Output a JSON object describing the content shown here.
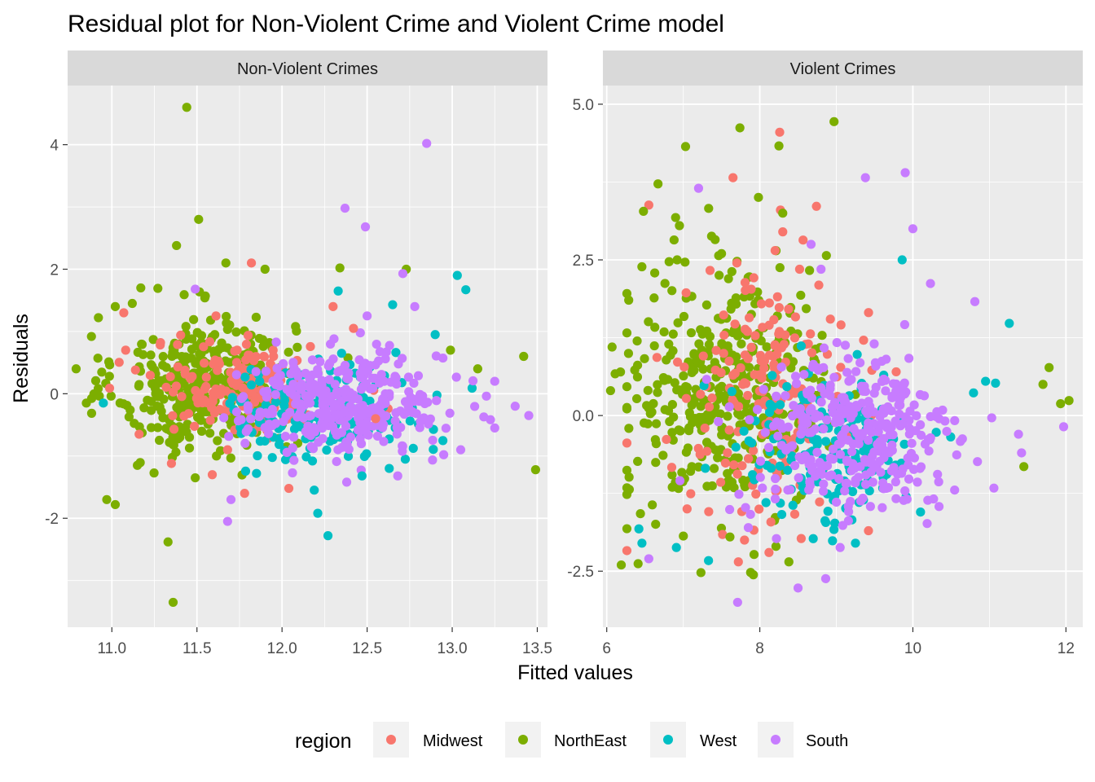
{
  "chart_data": {
    "type": "scatter",
    "title": "Residual plot for Non-Violent Crime and Violent Crime model",
    "xlabel": "Fitted values",
    "ylabel": "Residuals",
    "legend": {
      "title": "region",
      "position": "bottom",
      "entries": [
        {
          "name": "Midwest",
          "color": "#F8766D"
        },
        {
          "name": "NorthEast",
          "color": "#7CAE00"
        },
        {
          "name": "West",
          "color": "#00BFC4"
        },
        {
          "name": "South",
          "color": "#C77CFF"
        }
      ]
    },
    "grid": true,
    "y_scale": "free",
    "panels": [
      {
        "name": "Non-Violent Crimes",
        "xlim": [
          10.74,
          13.56
        ],
        "ylim": [
          -3.75,
          4.95
        ],
        "x_ticks": [
          11.0,
          11.5,
          12.0,
          12.5,
          13.0,
          13.5
        ],
        "x_tick_labels": [
          "11.0",
          "11.5",
          "12.0",
          "12.5",
          "13.0",
          "13.5"
        ],
        "y_ticks": [
          -2,
          0,
          2,
          4
        ],
        "y_tick_labels": [
          "-2",
          "0",
          "2",
          "4"
        ],
        "outliers": {
          "Midwest": [
            [
              11.82,
              2.1
            ],
            [
              11.07,
              1.3
            ],
            [
              11.78,
              -1.6
            ],
            [
              11.95,
              0.6
            ],
            [
              12.04,
              -1.52
            ],
            [
              11.59,
              -1.3
            ],
            [
              11.35,
              -1.12
            ],
            [
              11.68,
              -0.9
            ],
            [
              12.42,
              1.05
            ],
            [
              12.3,
              1.4
            ],
            [
              11.16,
              -0.65
            ],
            [
              12.55,
              -0.4
            ]
          ],
          "NorthEast": [
            [
              11.44,
              4.6
            ],
            [
              11.36,
              -3.35
            ],
            [
              11.51,
              2.8
            ],
            [
              11.33,
              -2.38
            ],
            [
              11.38,
              2.38
            ],
            [
              11.67,
              2.1
            ],
            [
              12.73,
              2.0
            ],
            [
              11.9,
              2.0
            ],
            [
              10.79,
              0.4
            ],
            [
              10.97,
              -1.7
            ],
            [
              11.02,
              -1.78
            ],
            [
              13.49,
              -1.22
            ],
            [
              13.42,
              0.6
            ],
            [
              10.85,
              -0.15
            ],
            [
              11.02,
              1.4
            ],
            [
              11.17,
              1.7
            ],
            [
              11.15,
              -1.15
            ],
            [
              11.49,
              -1.35
            ],
            [
              12.34,
              2.02
            ],
            [
              12.99,
              0.7
            ],
            [
              13.15,
              0.4
            ],
            [
              11.12,
              1.45
            ],
            [
              10.88,
              0.92
            ]
          ],
          "West": [
            [
              13.03,
              1.9
            ],
            [
              13.08,
              1.67
            ],
            [
              12.21,
              -1.92
            ],
            [
              12.27,
              -2.28
            ],
            [
              12.33,
              1.65
            ],
            [
              12.65,
              1.43
            ],
            [
              10.95,
              -0.15
            ],
            [
              12.63,
              -1.2
            ],
            [
              11.85,
              -1.28
            ],
            [
              12.47,
              -1.32
            ],
            [
              12.35,
              0.65
            ],
            [
              12.9,
              0.95
            ]
          ],
          "South": [
            [
              12.85,
              4.02
            ],
            [
              12.37,
              2.98
            ],
            [
              12.49,
              2.68
            ],
            [
              11.7,
              -1.7
            ],
            [
              11.68,
              -2.05
            ],
            [
              13.45,
              -0.35
            ],
            [
              13.37,
              -0.2
            ],
            [
              13.25,
              -0.55
            ],
            [
              12.71,
              1.93
            ],
            [
              11.49,
              1.68
            ],
            [
              12.78,
              1.4
            ],
            [
              13.25,
              0.2
            ],
            [
              12.38,
              -1.42
            ],
            [
              12.5,
              1.25
            ],
            [
              13.05,
              -0.9
            ],
            [
              12.07,
              -1.07
            ],
            [
              12.68,
              -1.32
            ],
            [
              12.95,
              -0.98
            ]
          ]
        },
        "clouds": [
          {
            "series": "NorthEast",
            "n": 380,
            "cx": 11.55,
            "sx": 0.26,
            "cy": 0.15,
            "sy": 0.55
          },
          {
            "series": "Midwest",
            "n": 170,
            "cx": 11.8,
            "sx": 0.28,
            "cy": 0.1,
            "sy": 0.38
          },
          {
            "series": "West",
            "n": 160,
            "cx": 12.25,
            "sx": 0.3,
            "cy": -0.3,
            "sy": 0.38
          },
          {
            "series": "South",
            "n": 330,
            "cx": 12.35,
            "sx": 0.3,
            "cy": -0.15,
            "sy": 0.4
          }
        ]
      },
      {
        "name": "Violent Crimes",
        "xlim": [
          5.95,
          12.22
        ],
        "ylim": [
          -3.4,
          5.3
        ],
        "x_ticks": [
          6,
          8,
          10,
          12
        ],
        "x_tick_labels": [
          "6",
          "8",
          "10",
          "12"
        ],
        "y_ticks": [
          -2.5,
          0.0,
          2.5,
          5.0
        ],
        "y_tick_labels": [
          "-2.5",
          "0.0",
          "2.5",
          "5.0"
        ],
        "outliers": {
          "Midwest": [
            [
              8.26,
              4.55
            ],
            [
              7.65,
              3.82
            ],
            [
              6.55,
              3.38
            ],
            [
              8.74,
              3.36
            ],
            [
              8.27,
              3.3
            ],
            [
              8.3,
              2.95
            ],
            [
              7.35,
              2.33
            ],
            [
              7.7,
              2.45
            ],
            [
              8.2,
              2.65
            ],
            [
              8.52,
              2.35
            ],
            [
              7.72,
              -2.35
            ],
            [
              8.12,
              -2.2
            ],
            [
              9.42,
              -1.85
            ],
            [
              7.05,
              -1.5
            ],
            [
              7.8,
              -2.0
            ]
          ],
          "NorthEast": [
            [
              8.97,
              4.72
            ],
            [
              7.74,
              4.62
            ],
            [
              8.25,
              4.33
            ],
            [
              7.03,
              4.32
            ],
            [
              6.67,
              3.72
            ],
            [
              6.9,
              3.18
            ],
            [
              6.95,
              3.05
            ],
            [
              6.92,
              2.5
            ],
            [
              8.3,
              3.25
            ],
            [
              7.37,
              2.88
            ],
            [
              7.5,
              2.6
            ],
            [
              6.19,
              -2.4
            ],
            [
              6.41,
              -2.38
            ],
            [
              7.88,
              -2.52
            ],
            [
              8.38,
              -2.35
            ],
            [
              6.05,
              0.4
            ],
            [
              6.07,
              1.1
            ],
            [
              6.11,
              0.67
            ],
            [
              6.18,
              0.7
            ],
            [
              12.04,
              0.24
            ],
            [
              11.93,
              0.19
            ],
            [
              11.78,
              0.77
            ],
            [
              11.45,
              -0.82
            ],
            [
              11.7,
              0.5
            ],
            [
              6.48,
              3.28
            ],
            [
              6.88,
              2.82
            ],
            [
              8.65,
              2.33
            ],
            [
              8.87,
              2.57
            ],
            [
              7.61,
              -1.95
            ]
          ],
          "West": [
            [
              9.86,
              2.5
            ],
            [
              11.26,
              1.48
            ],
            [
              6.46,
              -2.05
            ],
            [
              7.33,
              -2.33
            ],
            [
              6.91,
              -2.12
            ],
            [
              9.25,
              -2.05
            ],
            [
              6.42,
              -1.82
            ],
            [
              10.1,
              -1.55
            ],
            [
              11.08,
              0.52
            ],
            [
              10.95,
              0.55
            ]
          ],
          "South": [
            [
              7.71,
              -3.0
            ],
            [
              8.5,
              -2.77
            ],
            [
              9.38,
              3.82
            ],
            [
              9.9,
              3.9
            ],
            [
              10.0,
              3.0
            ],
            [
              7.2,
              3.65
            ],
            [
              8.67,
              2.75
            ],
            [
              10.81,
              1.83
            ],
            [
              10.23,
              2.12
            ],
            [
              11.42,
              -0.6
            ],
            [
              11.97,
              -0.18
            ],
            [
              11.38,
              -0.3
            ],
            [
              6.55,
              -2.3
            ],
            [
              7.85,
              -1.8
            ],
            [
              9.05,
              -2.12
            ],
            [
              9.6,
              -1.48
            ],
            [
              8.8,
              2.35
            ]
          ]
        },
        "clouds": [
          {
            "series": "NorthEast",
            "n": 380,
            "cx": 7.55,
            "sx": 0.65,
            "cy": 0.35,
            "sy": 0.95
          },
          {
            "series": "Midwest",
            "n": 170,
            "cx": 8.1,
            "sx": 0.55,
            "cy": 0.35,
            "sy": 0.9
          },
          {
            "series": "West",
            "n": 170,
            "cx": 8.9,
            "sx": 0.6,
            "cy": -0.55,
            "sy": 0.65
          },
          {
            "series": "South",
            "n": 330,
            "cx": 9.2,
            "sx": 0.7,
            "cy": -0.35,
            "sy": 0.7
          }
        ]
      }
    ]
  }
}
